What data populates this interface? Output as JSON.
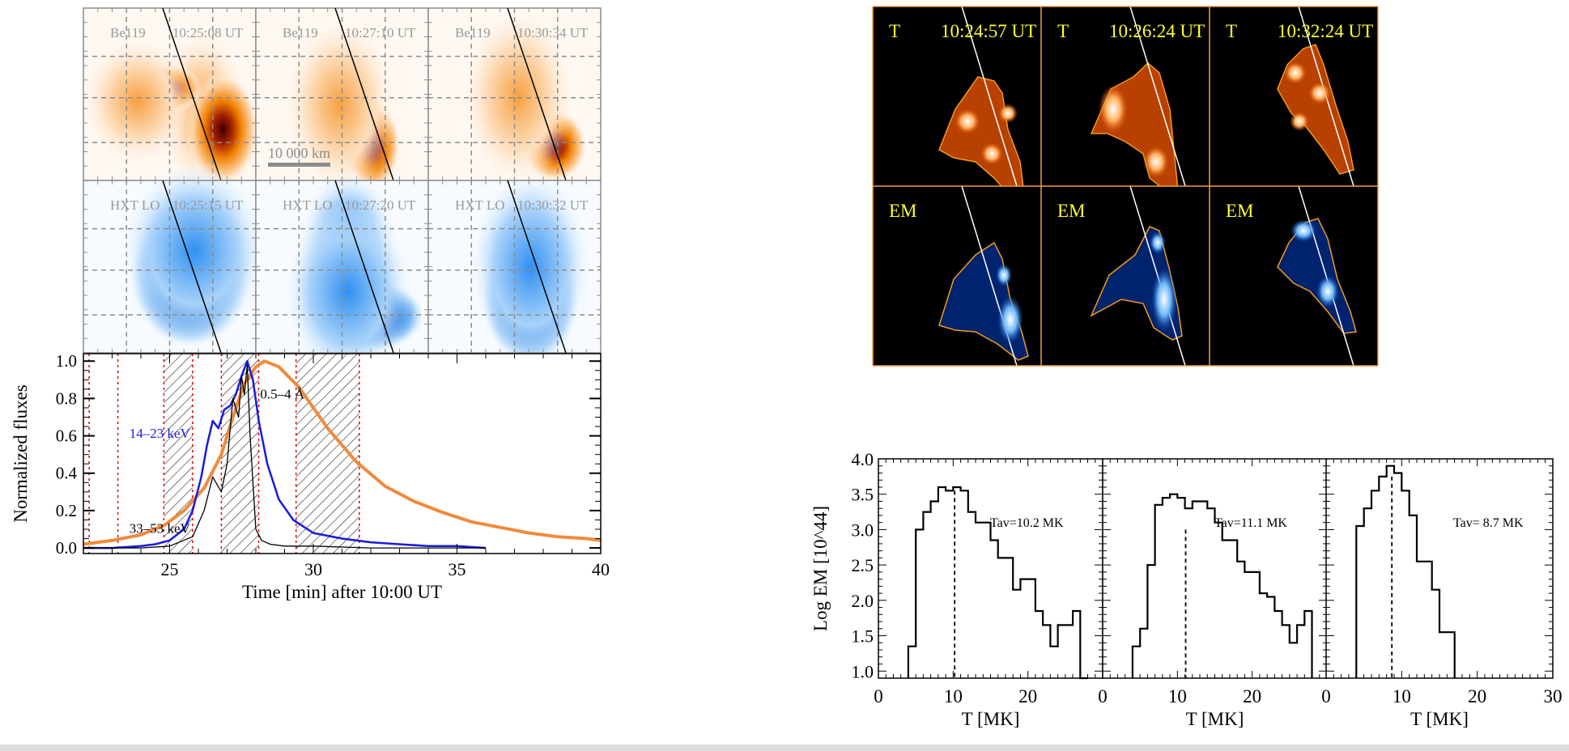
{
  "left_panel": {
    "row1": {
      "instrument": "Be119",
      "times": [
        "10:25:08 UT",
        "10:27:10 UT",
        "10:30:34 UT"
      ],
      "colormap": "orange",
      "scale_bar_label": "10 000 km"
    },
    "row2": {
      "instrument": "HXT LO",
      "times": [
        "10:25:15 UT",
        "10:27:20 UT",
        "10:30:32 UT"
      ],
      "colormap": "blue"
    }
  },
  "right_panel": {
    "row1": {
      "label": "T",
      "times": [
        "10:24:57 UT",
        "10:26:24 UT",
        "10:32:24 UT"
      ],
      "colormap": "hot"
    },
    "row2": {
      "label": "EM",
      "colormap": "blue"
    }
  },
  "colors": {
    "orange_curve": "#f08a3c",
    "blue_curve": "#1a1adc",
    "black_curve": "#000000",
    "red_dotted": "#e00000",
    "panel_border_orange": "#f0a040",
    "label_yellow": "#ffff33",
    "grid_gray": "#8c8c8c"
  },
  "chart_data": [
    {
      "type": "line",
      "title": "",
      "xlabel": "Time [min] after 10:00 UT",
      "ylabel": "Normalized fluxes",
      "xlim": [
        22,
        40
      ],
      "ylim": [
        -0.03,
        1.04
      ],
      "xticks": [
        25,
        30,
        35,
        40
      ],
      "xtick_labels": [
        "25",
        "30",
        "35",
        "40"
      ],
      "yticks": [
        0.0,
        0.2,
        0.4,
        0.6,
        0.8,
        1.0
      ],
      "ytick_labels": [
        "0.0",
        "0.2",
        "0.4",
        "0.6",
        "0.8",
        "1.0"
      ],
      "series": [
        {
          "name": "0.5–4 Å",
          "color": "orange",
          "x": [
            22,
            23,
            24,
            24.8,
            25.5,
            26.2,
            26.8,
            27.2,
            27.6,
            28.0,
            28.3,
            28.8,
            29.5,
            30.5,
            31.5,
            32.5,
            33.5,
            34.5,
            35.5,
            36.5,
            37.5,
            38.5,
            39.5,
            40
          ],
          "y": [
            0.02,
            0.04,
            0.07,
            0.12,
            0.2,
            0.32,
            0.5,
            0.7,
            0.88,
            0.97,
            1.0,
            0.97,
            0.86,
            0.64,
            0.46,
            0.33,
            0.25,
            0.19,
            0.14,
            0.11,
            0.08,
            0.06,
            0.05,
            0.04
          ]
        },
        {
          "name": "14–23 keV",
          "color": "blue",
          "x": [
            22,
            23,
            24,
            24.5,
            25,
            25.5,
            25.8,
            26.1,
            26.3,
            26.5,
            26.7,
            26.9,
            27.1,
            27.3,
            27.5,
            27.7,
            27.9,
            28.1,
            28.4,
            28.8,
            29.3,
            30,
            31,
            32,
            33,
            34,
            35,
            36
          ],
          "y": [
            0.0,
            0.0,
            0.01,
            0.02,
            0.04,
            0.1,
            0.2,
            0.38,
            0.55,
            0.68,
            0.64,
            0.74,
            0.76,
            0.82,
            0.92,
            1.0,
            0.9,
            0.68,
            0.45,
            0.26,
            0.15,
            0.08,
            0.05,
            0.03,
            0.02,
            0.01,
            0.01,
            0.0
          ]
        },
        {
          "name": "33–53 keV",
          "color": "black",
          "x": [
            22,
            23,
            24,
            25,
            25.8,
            26.2,
            26.5,
            26.8,
            27.0,
            27.2,
            27.4,
            27.5,
            27.6,
            27.7,
            27.8,
            27.9,
            28.0,
            28.2,
            28.5,
            29,
            30,
            32,
            34,
            36
          ],
          "y": [
            0.0,
            0.0,
            0.0,
            0.01,
            0.06,
            0.2,
            0.38,
            0.3,
            0.45,
            0.8,
            0.7,
            0.92,
            0.82,
            0.98,
            0.6,
            0.35,
            0.1,
            0.04,
            0.02,
            0.01,
            0.01,
            0.0,
            0.0,
            0.0
          ]
        }
      ],
      "annotations": [
        {
          "text": "0.5–4 Å",
          "x": 28.1,
          "y": 0.8
        },
        {
          "text": "14–23 keV",
          "x": 23.5,
          "y": 0.6
        },
        {
          "text": "33–53 keV",
          "x": 23.5,
          "y": 0.09
        }
      ],
      "red_dotted_lines_x": [
        22.2,
        23.2,
        24.8,
        25.8,
        26.8,
        28.1,
        29.4,
        31.6
      ],
      "hatched_intervals": [
        [
          24.8,
          25.8
        ],
        [
          26.8,
          28.1
        ],
        [
          29.4,
          31.6
        ]
      ]
    },
    {
      "type": "bar",
      "subtype": "step-histogram",
      "panels": [
        {
          "label": "Tav=10.2 MK",
          "tav": 10.2,
          "bin_edges": [
            4,
            5,
            6,
            7,
            8,
            9,
            10,
            11,
            12,
            13,
            14,
            15,
            16,
            17,
            18,
            19,
            20,
            21,
            22,
            23,
            24,
            25,
            26,
            27,
            28
          ],
          "values": [
            1.35,
            3.0,
            3.25,
            3.4,
            3.6,
            3.55,
            3.6,
            3.55,
            3.25,
            3.1,
            3.1,
            2.85,
            2.6,
            2.6,
            2.15,
            2.3,
            2.3,
            1.85,
            1.65,
            1.35,
            1.65,
            1.65,
            1.85,
            0.0
          ]
        },
        {
          "label": "Tav=11.1 MK",
          "tav": 11.1,
          "bin_edges": [
            4,
            5,
            6,
            7,
            8,
            9,
            10,
            11,
            12,
            13,
            14,
            15,
            16,
            17,
            18,
            19,
            20,
            21,
            22,
            23,
            24,
            25,
            26,
            27,
            28
          ],
          "values": [
            1.35,
            1.6,
            2.5,
            3.35,
            3.45,
            3.5,
            3.45,
            3.3,
            3.4,
            3.4,
            3.3,
            3.1,
            2.85,
            2.85,
            2.55,
            2.4,
            2.4,
            2.1,
            2.05,
            1.85,
            1.65,
            1.4,
            1.65,
            1.85
          ]
        },
        {
          "label": "Tav= 8.7 MK",
          "tav": 8.7,
          "bin_edges": [
            4,
            5,
            6,
            7,
            8,
            9,
            10,
            11,
            12,
            13,
            14,
            15,
            16,
            17
          ],
          "values": [
            3.05,
            3.3,
            3.55,
            3.75,
            3.9,
            3.8,
            3.55,
            3.2,
            2.55,
            2.55,
            2.15,
            1.55,
            1.55
          ]
        }
      ],
      "xlabel": "T [MK]",
      "ylabel": "Log EM [10^44]",
      "xlim": [
        0,
        30
      ],
      "ylim": [
        0.9,
        4.0
      ],
      "xticks": [
        0,
        10,
        20,
        30
      ],
      "xtick_labels_panel1": [
        "0",
        "10",
        "20"
      ],
      "xtick_labels_panel2": [
        "0",
        "10",
        "20"
      ],
      "xtick_labels_panel3": [
        "0",
        "10",
        "20",
        "30"
      ],
      "yticks": [
        1.0,
        1.5,
        2.0,
        2.5,
        3.0,
        3.5,
        4.0
      ],
      "ytick_labels": [
        "1.0",
        "1.5",
        "2.0",
        "2.5",
        "3.0",
        "3.5",
        "4.0"
      ]
    }
  ]
}
